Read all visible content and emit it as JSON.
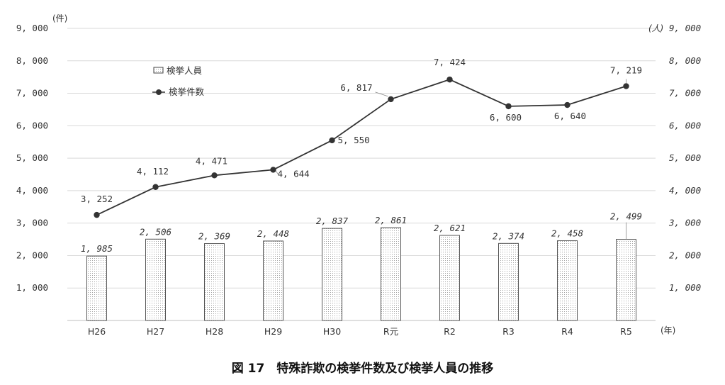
{
  "caption": "図 17　特殊詐欺の検挙件数及び検挙人員の推移",
  "colors": {
    "line": "#333333",
    "grid": "#d9d9d9",
    "highlight": "#ff0000",
    "bar_fill": "#ffffff"
  },
  "chart_data": {
    "type": "bar",
    "categories": [
      "H26",
      "H27",
      "H28",
      "H29",
      "H30",
      "R元",
      "R2",
      "R3",
      "R4",
      "R5"
    ],
    "series": [
      {
        "name": "検挙人員",
        "kind": "bar",
        "axis": "right",
        "values": [
          1985,
          2506,
          2369,
          2448,
          2837,
          2861,
          2621,
          2374,
          2458,
          2499
        ],
        "labels": [
          "1, 985",
          "2, 506",
          "2, 369",
          "2, 448",
          "2, 837",
          "2, 861",
          "2, 621",
          "2, 374",
          "2, 458",
          "2, 499"
        ]
      },
      {
        "name": "検挙件数",
        "kind": "line",
        "axis": "left",
        "values": [
          3252,
          4112,
          4471,
          4644,
          5550,
          6817,
          7424,
          6600,
          6640,
          7219
        ],
        "labels": [
          "3, 252",
          "4, 112",
          "4, 471",
          "4, 644",
          "5, 550",
          "6, 817",
          "7, 424",
          "6, 600",
          "6, 640",
          "7, 219"
        ]
      }
    ],
    "highlight_index": 9,
    "y_left": {
      "unit": "(件)",
      "range": [
        0,
        9000
      ],
      "ticks": [
        "1, 000",
        "2, 000",
        "3, 000",
        "4, 000",
        "5, 000",
        "6, 000",
        "7, 000",
        "8, 000",
        "9, 000"
      ]
    },
    "y_right": {
      "unit": "(人)",
      "range": [
        0,
        9000
      ],
      "ticks": [
        "1, 000",
        "2, 000",
        "3, 000",
        "4, 000",
        "5, 000",
        "6, 000",
        "7, 000",
        "8, 000",
        "9, 000"
      ]
    },
    "x_unit": "(年)",
    "grid": true,
    "legend": {
      "position": "top-left",
      "items": [
        "検挙人員",
        "検挙件数"
      ]
    }
  }
}
